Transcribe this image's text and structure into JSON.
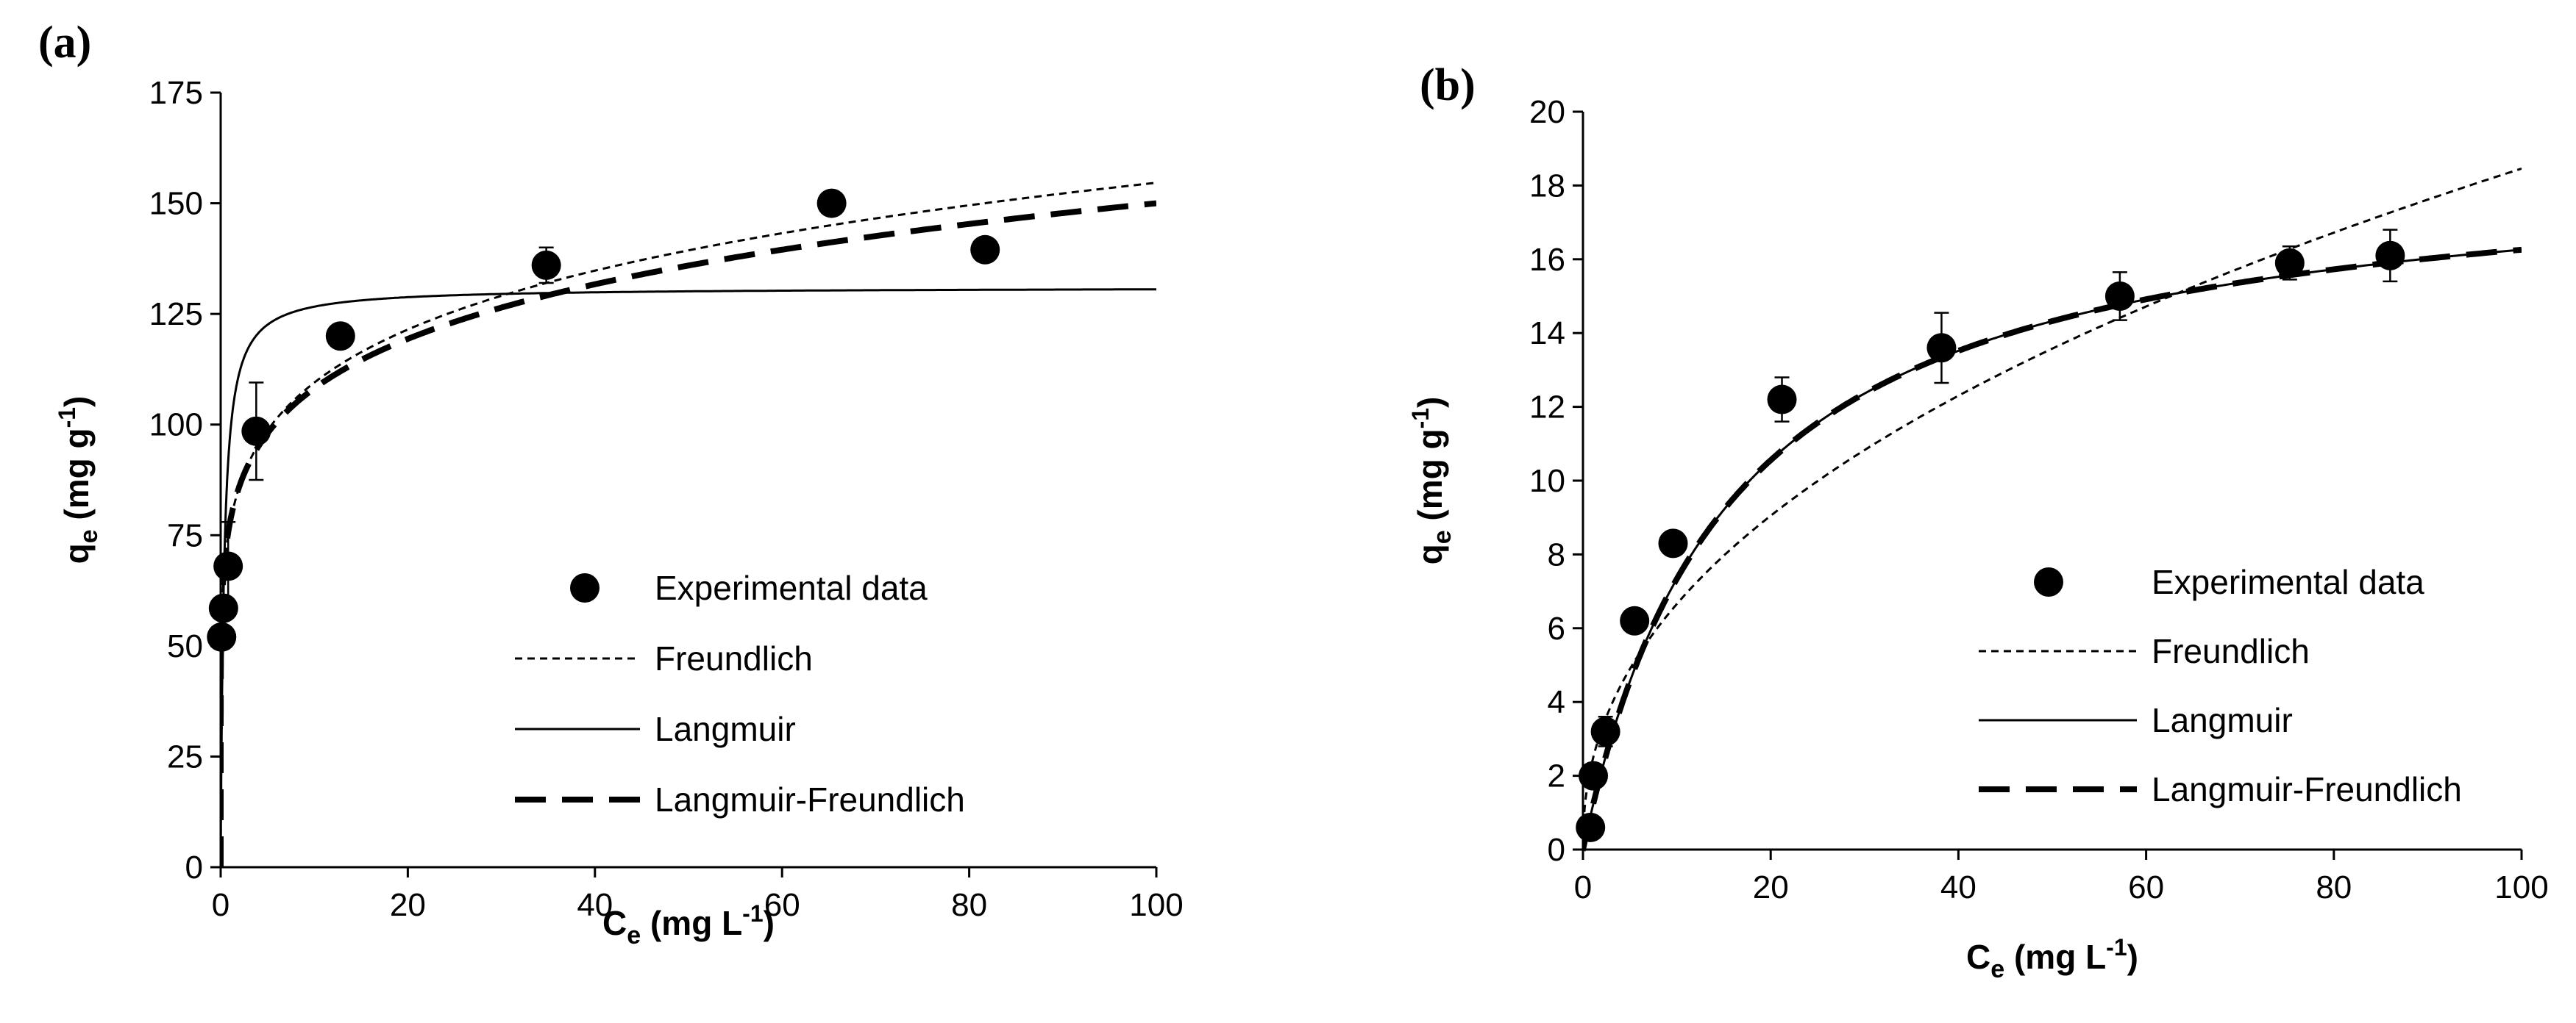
{
  "chart_data": [
    {
      "type": "scatter",
      "panel_label": "(a)",
      "title": "",
      "xlabel": "C",
      "xlabel_sub": "e",
      "xlabel_unit": " (mg L",
      "xlabel_sup": "-1",
      "xlabel_close": ")",
      "ylabel": "q",
      "ylabel_sub": "e",
      "ylabel_unit": " (mg g",
      "ylabel_sup": "-1",
      "ylabel_close": ")",
      "xlim": [
        0,
        100
      ],
      "ylim": [
        0,
        175
      ],
      "xticks": [
        0,
        20,
        40,
        60,
        80,
        100
      ],
      "xtick_labels": [
        "0",
        "20",
        "40",
        "60",
        "80",
        "100"
      ],
      "yticks": [
        0,
        25,
        50,
        75,
        100,
        125,
        150,
        175
      ],
      "ytick_labels": [
        "0",
        "25",
        "50",
        "75",
        "100",
        "125",
        "150",
        "175"
      ],
      "grid": false,
      "legend_position": "lower-right",
      "series": [
        {
          "name": "Experimental data",
          "kind": "points",
          "x": [
            0.1,
            0.3,
            0.8,
            3.8,
            12.8,
            34.8,
            65.3,
            81.7
          ],
          "y": [
            52,
            58.5,
            68,
            98.5,
            120,
            136,
            150,
            139.5
          ],
          "err": [
            0,
            0,
            10,
            11,
            2,
            4,
            2,
            2
          ]
        },
        {
          "name": "Freundlich",
          "kind": "line",
          "style": "dotted",
          "model": "freundlich",
          "params": {
            "Kf": 77.5,
            "n": 0.15
          }
        },
        {
          "name": "Langmuir",
          "kind": "line",
          "style": "solid",
          "model": "langmuir",
          "params": {
            "qm": 131,
            "KL": 2.9
          }
        },
        {
          "name": "Langmuir-Freundlich",
          "kind": "line",
          "style": "dashed",
          "model": "powerlaw",
          "params": {
            "a": 78.0,
            "b": 0.142
          }
        }
      ]
    },
    {
      "type": "scatter",
      "panel_label": "(b)",
      "title": "",
      "xlabel": "C",
      "xlabel_sub": "e",
      "xlabel_unit": " (mg L",
      "xlabel_sup": "-1",
      "xlabel_close": ")",
      "ylabel": "q",
      "ylabel_sub": "e",
      "ylabel_unit": " (mg g",
      "ylabel_sup": "-1",
      "ylabel_close": ")",
      "xlim": [
        0,
        100
      ],
      "ylim": [
        0,
        20
      ],
      "xticks": [
        0,
        20,
        40,
        60,
        80,
        100
      ],
      "xtick_labels": [
        "0",
        "20",
        "40",
        "60",
        "80",
        "100"
      ],
      "yticks": [
        0,
        2,
        4,
        6,
        8,
        10,
        12,
        14,
        16,
        18,
        20
      ],
      "ytick_labels": [
        "0",
        "2",
        "4",
        "6",
        "8",
        "10",
        "12",
        "14",
        "16",
        "18",
        "20"
      ],
      "grid": false,
      "legend_position": "lower-right",
      "series": [
        {
          "name": "Experimental data",
          "kind": "points",
          "x": [
            0.8,
            1.1,
            2.4,
            5.5,
            9.6,
            21.2,
            38.2,
            57.2,
            75.3,
            86.0
          ],
          "y": [
            0.6,
            2.0,
            3.2,
            6.2,
            8.3,
            12.2,
            13.6,
            15.0,
            15.9,
            16.1
          ],
          "err": [
            0,
            0,
            0.4,
            0.3,
            0.3,
            0.6,
            0.95,
            0.65,
            0.45,
            0.7
          ]
        },
        {
          "name": "Freundlich",
          "kind": "line",
          "style": "dotted",
          "model": "freundlich",
          "params": {
            "Kf": 2.4,
            "n": 0.443
          }
        },
        {
          "name": "Langmuir",
          "kind": "line",
          "style": "solid",
          "model": "langmuir",
          "params": {
            "qm": 18.8,
            "KL": 0.064
          }
        },
        {
          "name": "Langmuir-Freundlich",
          "kind": "line",
          "style": "dashed",
          "model": "langmuir",
          "params": {
            "qm": 18.8,
            "KL": 0.064
          }
        }
      ]
    }
  ]
}
